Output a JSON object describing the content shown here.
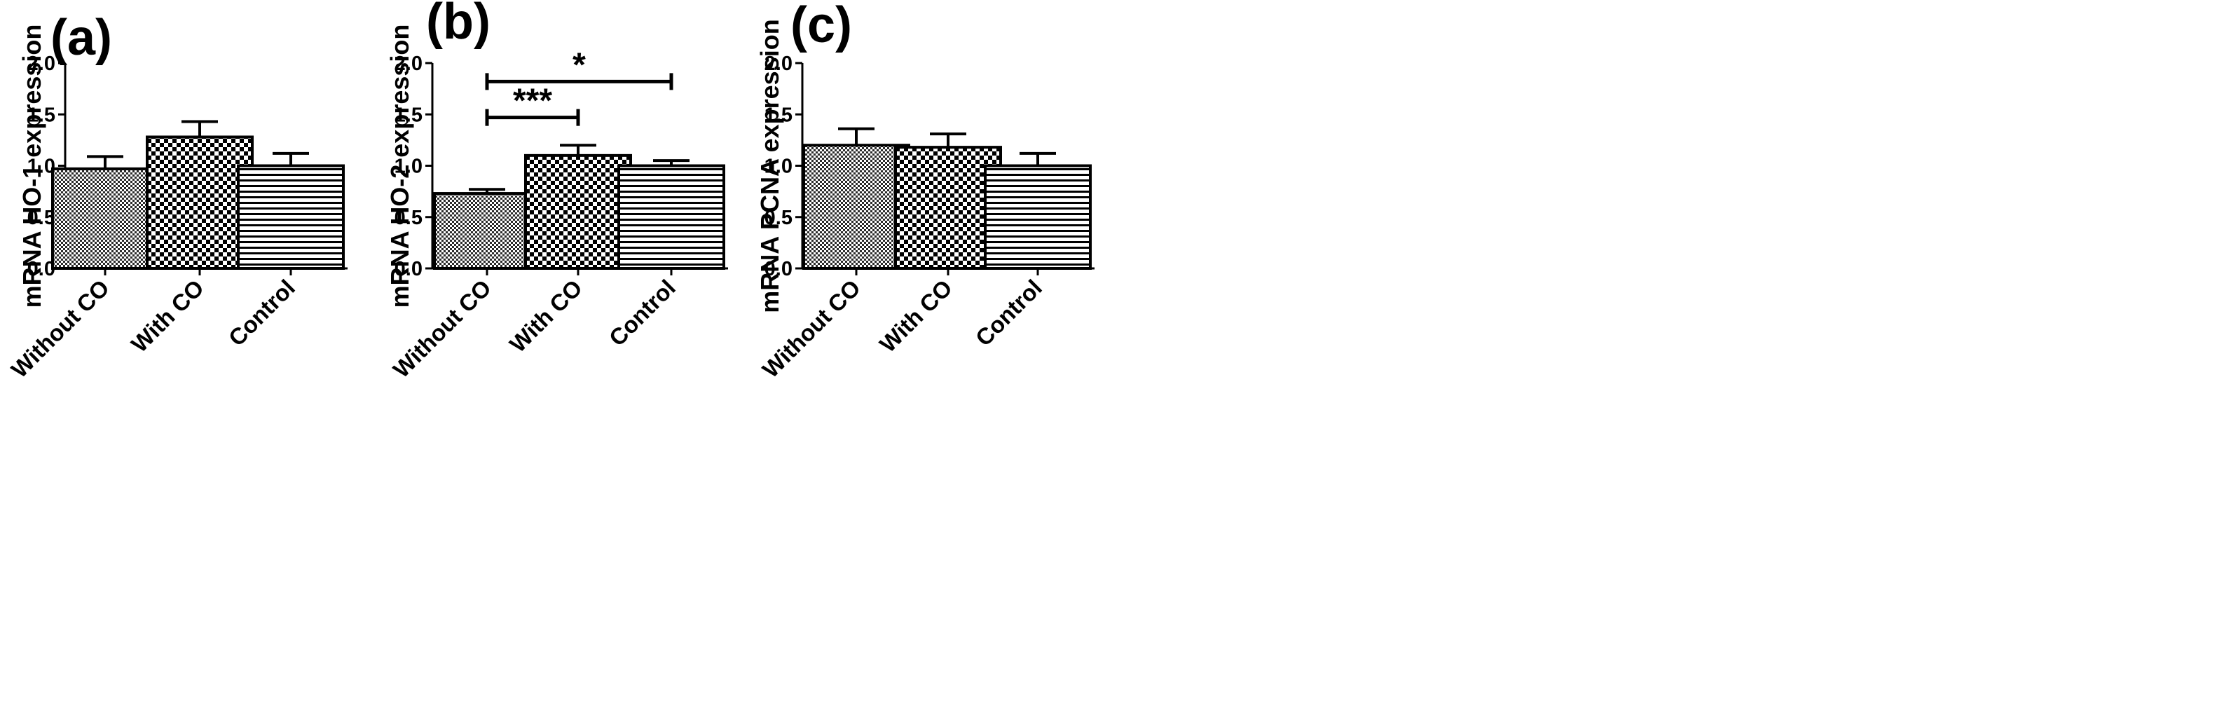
{
  "chart_data": [
    {
      "panel": "(a)",
      "type": "bar",
      "categories": [
        "Without CO",
        "With CO",
        "Control"
      ],
      "values": [
        0.97,
        1.28,
        1.0
      ],
      "errors": [
        0.12,
        0.15,
        0.12
      ],
      "patterns": [
        "fine-check",
        "coarse-check",
        "hstripe"
      ],
      "title": "",
      "xlabel": "",
      "ylabel": "mRNA HO-1 expression",
      "ylim": [
        0,
        2.0
      ],
      "yticks": [
        "0.0",
        "0.5",
        "1.0",
        "1.5",
        "2.0"
      ],
      "significance": []
    },
    {
      "panel": "(b)",
      "type": "bar",
      "categories": [
        "Without CO",
        "With CO",
        "Control"
      ],
      "values": [
        0.73,
        1.1,
        1.0
      ],
      "errors": [
        0.04,
        0.1,
        0.05
      ],
      "patterns": [
        "fine-check",
        "coarse-check",
        "hstripe"
      ],
      "title": "",
      "xlabel": "",
      "ylabel": "mRNA HO-2 expression",
      "ylim": [
        0,
        2.0
      ],
      "yticks": [
        "0.0",
        "0.5",
        "1.0",
        "1.5",
        "2.0"
      ],
      "significance": [
        {
          "from": 0,
          "to": 1,
          "y": 1.47,
          "label": "***"
        },
        {
          "from": 0,
          "to": 2,
          "y": 1.82,
          "label": "*"
        }
      ]
    },
    {
      "panel": "(c)",
      "type": "bar",
      "categories": [
        "Without CO",
        "With CO",
        "Control"
      ],
      "values": [
        1.2,
        1.18,
        1.0
      ],
      "errors": [
        0.16,
        0.13,
        0.12
      ],
      "patterns": [
        "fine-check",
        "coarse-check",
        "hstripe"
      ],
      "title": "",
      "xlabel": "",
      "ylabel": "mRNA PCNA expression",
      "ylim": [
        0,
        2.0
      ],
      "yticks": [
        "0.0",
        "0.5",
        "1.0",
        "1.5",
        "2.0"
      ],
      "significance": []
    }
  ]
}
